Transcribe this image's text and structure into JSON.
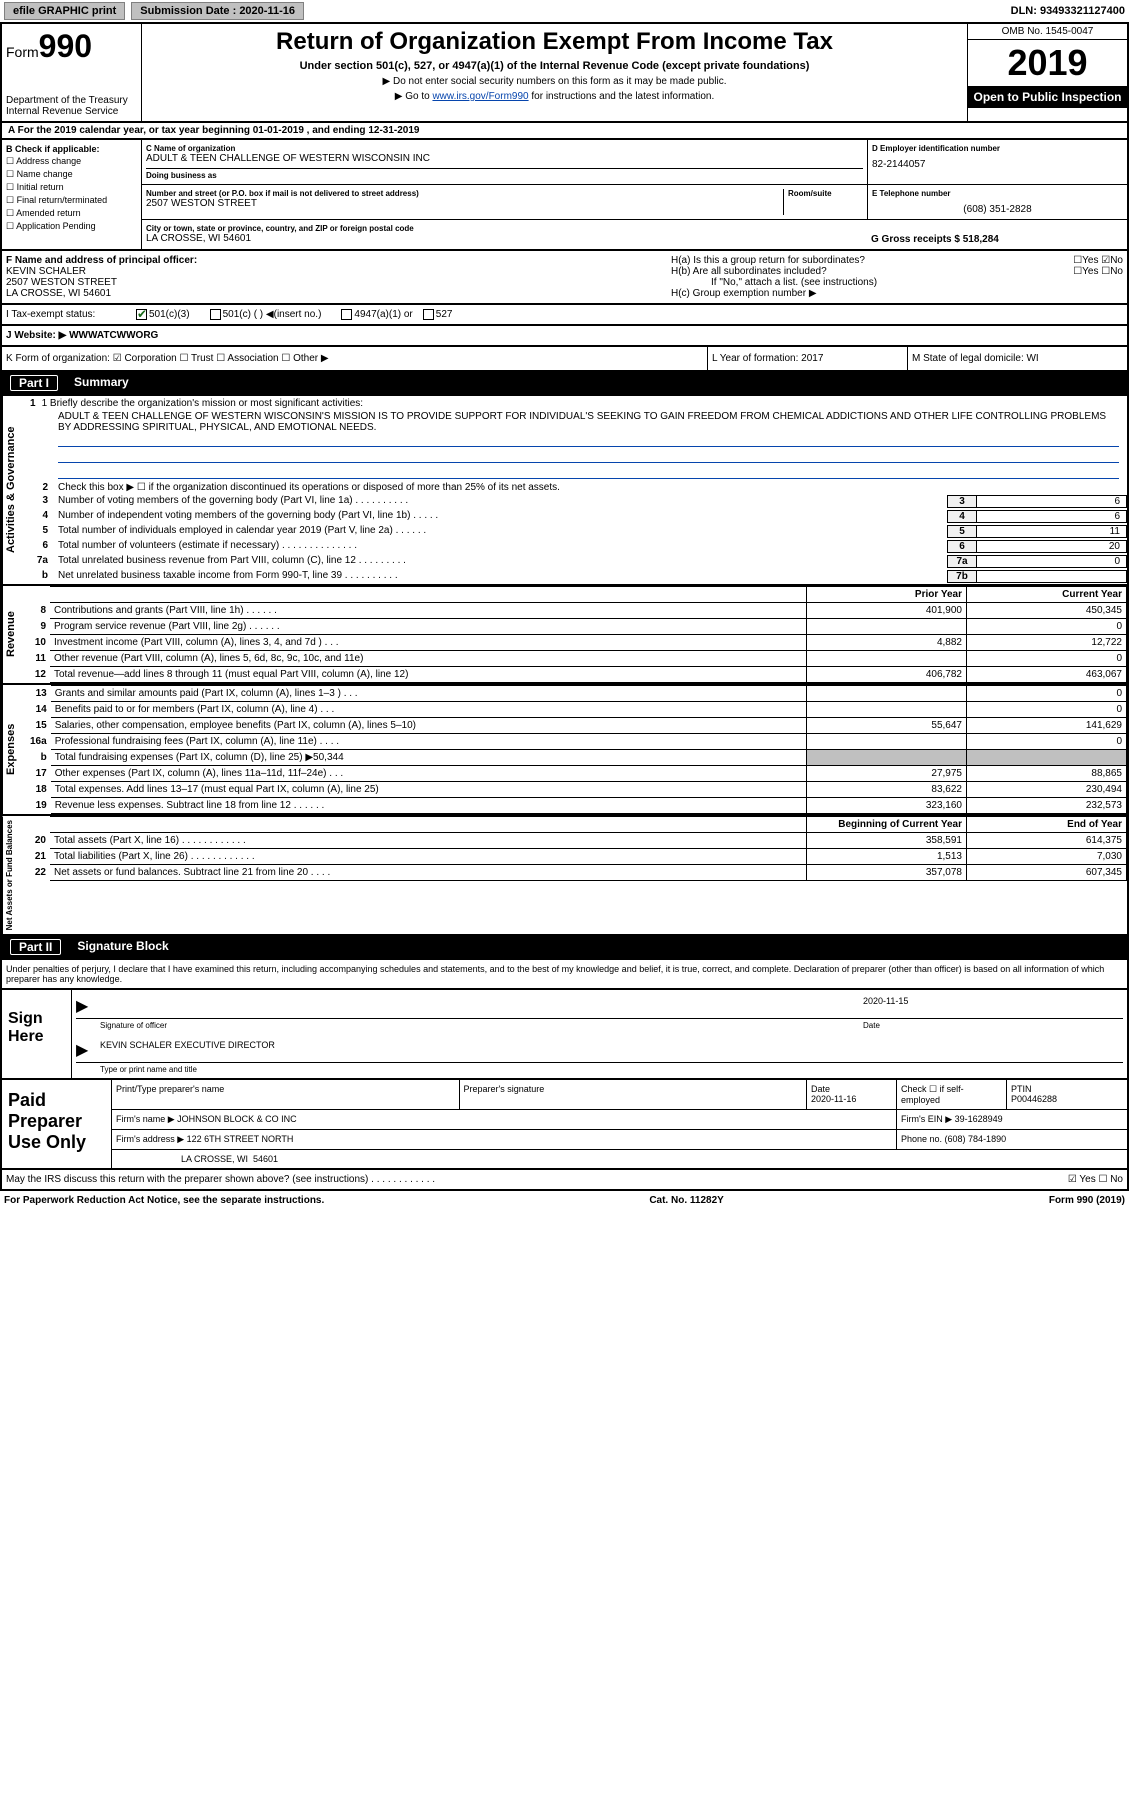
{
  "topbar": {
    "efile": "efile GRAPHIC print",
    "submission_label": "Submission Date : 2020-11-16",
    "dln": "DLN: 93493321127400"
  },
  "header": {
    "form_word": "Form",
    "form_num": "990",
    "dept": "Department of the Treasury\nInternal Revenue Service",
    "title": "Return of Organization Exempt From Income Tax",
    "sub": "Under section 501(c), 527, or 4947(a)(1) of the Internal Revenue Code (except private foundations)",
    "line1": "▶ Do not enter social security numbers on this form as it may be made public.",
    "line2_pre": "▶ Go to ",
    "line2_link": "www.irs.gov/Form990",
    "line2_post": " for instructions and the latest information.",
    "omb": "OMB No. 1545-0047",
    "year": "2019",
    "open": "Open to Public Inspection"
  },
  "section_a": "A   For the 2019 calendar year, or tax year beginning 01-01-2019     , and ending 12-31-2019",
  "col_b": {
    "header": "B Check if applicable:",
    "opts": [
      "☐ Address change",
      "☐ Name change",
      "☐ Initial return",
      "☐ Final return/terminated",
      "☐ Amended return",
      "☐ Application Pending"
    ]
  },
  "col_c": {
    "name_label": "C Name of organization",
    "name": "ADULT & TEEN CHALLENGE OF WESTERN WISCONSIN INC",
    "dba_label": "Doing business as",
    "street_label": "Number and street (or P.O. box if mail is not delivered to street address)",
    "street": "2507 WESTON STREET",
    "room_label": "Room/suite",
    "city_label": "City or town, state or province, country, and ZIP or foreign postal code",
    "city": "LA CROSSE, WI  54601"
  },
  "col_d": {
    "ein_label": "D Employer identification number",
    "ein": "82-2144057",
    "phone_label": "E Telephone number",
    "phone": "(608) 351-2828",
    "gross_label": "G Gross receipts $ 518,284"
  },
  "row_f": {
    "label": "F  Name and address of principal officer:",
    "name": "KEVIN SCHALER",
    "addr1": "2507 WESTON STREET",
    "addr2": "LA CROSSE, WI  54601"
  },
  "row_h": {
    "ha": "H(a)  Is this a group return for subordinates?",
    "ha_ans": "☐Yes ☑No",
    "hb": "H(b)  Are all subordinates included?",
    "hb_ans": "☐Yes ☐No",
    "hb_note": "If \"No,\" attach a list. (see instructions)",
    "hc": "H(c)  Group exemption number ▶"
  },
  "tax_exempt": {
    "label": "I    Tax-exempt status:",
    "opt1": "501(c)(3)",
    "opt2": "501(c) (  ) ◀(insert no.)",
    "opt3": "4947(a)(1) or",
    "opt4": "527"
  },
  "website": {
    "label": "J   Website: ▶",
    "val": "WWWATCWWORG"
  },
  "k_row": {
    "k": "K Form of organization:  ☑ Corporation  ☐ Trust  ☐ Association  ☐ Other ▶",
    "l": "L Year of formation: 2017",
    "m": "M State of legal domicile: WI"
  },
  "part1": {
    "label": "Part I",
    "title": "Summary"
  },
  "mission": {
    "q": "1   Briefly describe the organization's mission or most significant activities:",
    "text": "ADULT & TEEN CHALLENGE OF WESTERN WISCONSIN'S MISSION IS TO PROVIDE SUPPORT FOR INDIVIDUAL'S SEEKING TO GAIN FREEDOM FROM CHEMICAL ADDICTIONS AND OTHER LIFE CONTROLLING PROBLEMS BY ADDRESSING SPIRITUAL, PHYSICAL, AND EMOTIONAL NEEDS."
  },
  "gov_lines": [
    {
      "n": "2",
      "t": "Check this box ▶ ☐  if the organization discontinued its operations or disposed of more than 25% of its net assets.",
      "box": "",
      "val": ""
    },
    {
      "n": "3",
      "t": "Number of voting members of the governing body (Part VI, line 1a)  .   .   .   .   .   .   .   .   .   .",
      "box": "3",
      "val": "6"
    },
    {
      "n": "4",
      "t": "Number of independent voting members of the governing body (Part VI, line 1b)   .   .   .   .   .",
      "box": "4",
      "val": "6"
    },
    {
      "n": "5",
      "t": "Total number of individuals employed in calendar year 2019 (Part V, line 2a)   .   .   .   .   .   .",
      "box": "5",
      "val": "11"
    },
    {
      "n": "6",
      "t": "Total number of volunteers (estimate if necessary)    .   .   .   .   .   .   .   .   .   .   .   .   .   .",
      "box": "6",
      "val": "20"
    },
    {
      "n": "7a",
      "t": "Total unrelated business revenue from Part VIII, column (C), line 12   .   .   .   .   .   .   .   .   .",
      "box": "7a",
      "val": "0"
    },
    {
      "n": "b",
      "t": "Net unrelated business taxable income from Form 990-T, line 39    .   .   .   .   .   .   .   .   .   .",
      "box": "7b",
      "val": ""
    }
  ],
  "col_headers": {
    "prior": "Prior Year",
    "curr": "Current Year"
  },
  "revenue": [
    {
      "n": "8",
      "t": "Contributions and grants (Part VIII, line 1h)   .   .   .   .   .   .",
      "p": "401,900",
      "c": "450,345"
    },
    {
      "n": "9",
      "t": "Program service revenue (Part VIII, line 2g)   .   .   .   .   .   .",
      "p": "",
      "c": "0"
    },
    {
      "n": "10",
      "t": "Investment income (Part VIII, column (A), lines 3, 4, and 7d )  .   .   .",
      "p": "4,882",
      "c": "12,722"
    },
    {
      "n": "11",
      "t": "Other revenue (Part VIII, column (A), lines 5, 6d, 8c, 9c, 10c, and 11e)",
      "p": "",
      "c": "0"
    },
    {
      "n": "12",
      "t": "Total revenue—add lines 8 through 11 (must equal Part VIII, column (A), line 12)",
      "p": "406,782",
      "c": "463,067"
    }
  ],
  "expenses": [
    {
      "n": "13",
      "t": "Grants and similar amounts paid (Part IX, column (A), lines 1–3 )  .   .   .",
      "p": "",
      "c": "0"
    },
    {
      "n": "14",
      "t": "Benefits paid to or for members (Part IX, column (A), line 4)   .   .   .",
      "p": "",
      "c": "0"
    },
    {
      "n": "15",
      "t": "Salaries, other compensation, employee benefits (Part IX, column (A), lines 5–10)",
      "p": "55,647",
      "c": "141,629"
    },
    {
      "n": "16a",
      "t": "Professional fundraising fees (Part IX, column (A), line 11e)   .   .   .   .",
      "p": "",
      "c": "0"
    },
    {
      "n": "b",
      "t": "Total fundraising expenses (Part IX, column (D), line 25) ▶50,344",
      "p": "SHADE",
      "c": "SHADE"
    },
    {
      "n": "17",
      "t": "Other expenses (Part IX, column (A), lines 11a–11d, 11f–24e)   .   .   .",
      "p": "27,975",
      "c": "88,865"
    },
    {
      "n": "18",
      "t": "Total expenses. Add lines 13–17 (must equal Part IX, column (A), line 25)",
      "p": "83,622",
      "c": "230,494"
    },
    {
      "n": "19",
      "t": "Revenue less expenses. Subtract line 18 from line 12   .   .   .   .   .   .",
      "p": "323,160",
      "c": "232,573"
    }
  ],
  "net_headers": {
    "begin": "Beginning of Current Year",
    "end": "End of Year"
  },
  "net": [
    {
      "n": "20",
      "t": "Total assets (Part X, line 16)   .   .   .   .   .   .   .   .   .   .   .   .",
      "p": "358,591",
      "c": "614,375"
    },
    {
      "n": "21",
      "t": "Total liabilities (Part X, line 26)  .   .   .   .   .   .   .   .   .   .   .   .",
      "p": "1,513",
      "c": "7,030"
    },
    {
      "n": "22",
      "t": "Net assets or fund balances. Subtract line 21 from line 20  .   .   .   .",
      "p": "357,078",
      "c": "607,345"
    }
  ],
  "part2": {
    "label": "Part II",
    "title": "Signature Block"
  },
  "sig_intro": "Under penalties of perjury, I declare that I have examined this return, including accompanying schedules and statements, and to the best of my knowledge and belief, it is true, correct, and complete. Declaration of preparer (other than officer) is based on all information of which preparer has any knowledge.",
  "sign": {
    "label": "Sign Here",
    "sig_label": "Signature of officer",
    "date_label": "Date",
    "date": "2020-11-15",
    "name": "KEVIN SCHALER  EXECUTIVE DIRECTOR",
    "name_label": "Type or print name and title"
  },
  "paid": {
    "label": "Paid Preparer Use Only",
    "r1": {
      "c1": "Print/Type preparer's name",
      "c2": "Preparer's signature",
      "c3": "Date\n2020-11-16",
      "c4": "Check ☐ if self-employed",
      "c5": "PTIN\nP00446288"
    },
    "r2": {
      "c1": "Firm's name    ▶ JOHNSON BLOCK & CO INC",
      "c2": "Firm's EIN ▶ 39-1628949"
    },
    "r3": {
      "c1": "Firm's address ▶ 122 6TH STREET NORTH",
      "c2": "Phone no. (608) 784-1890"
    },
    "r4": {
      "c1": "                          LA CROSSE, WI  54601"
    }
  },
  "footer": {
    "discuss": "May the IRS discuss this return with the preparer shown above? (see instructions)   .   .   .   .   .   .   .   .   .   .   .   .",
    "discuss_ans": "☑ Yes  ☐ No",
    "pra": "For Paperwork Reduction Act Notice, see the separate instructions.",
    "cat": "Cat. No. 11282Y",
    "form": "Form 990 (2019)"
  },
  "vlabels": {
    "gov": "Activities & Governance",
    "rev": "Revenue",
    "exp": "Expenses",
    "net": "Net Assets or Fund Balances"
  }
}
